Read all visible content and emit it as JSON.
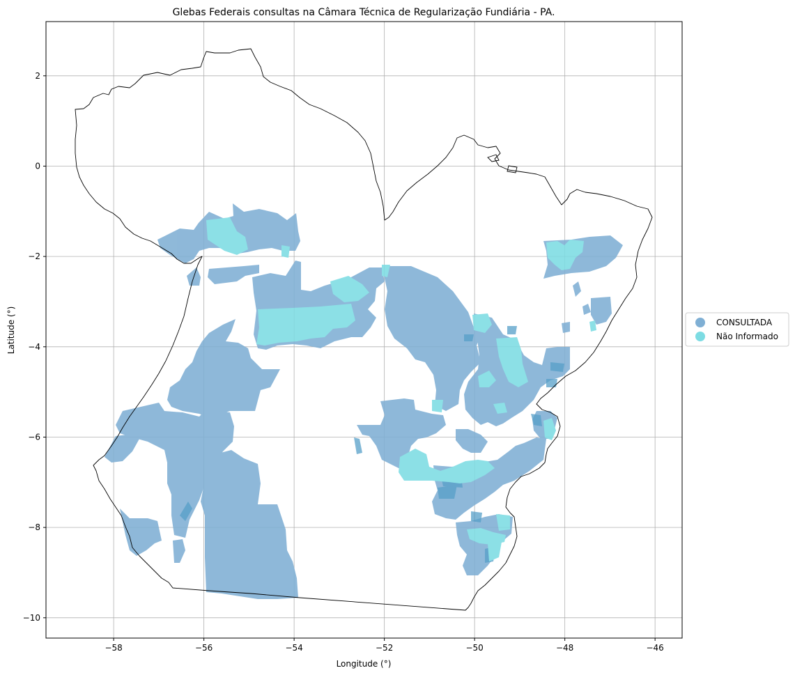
{
  "chart_data": {
    "type": "map",
    "title": "Glebas Federais consultas na Câmara Técnica de Regularização Fundiária - PA.",
    "xlabel": "Longitude (°)",
    "ylabel": "Latitude (°)",
    "xlim": [
      -59.5,
      -45.4
    ],
    "ylim": [
      -10.45,
      3.2
    ],
    "xticks": [
      -58,
      -56,
      -54,
      -52,
      -50,
      -48,
      -46
    ],
    "yticks": [
      2,
      0,
      -2,
      -4,
      -6,
      -8,
      -10
    ],
    "xtick_labels": [
      "−58",
      "−56",
      "−54",
      "−52",
      "−50",
      "−48",
      "−46"
    ],
    "ytick_labels": [
      "2",
      "0",
      "−2",
      "−4",
      "−6",
      "−8",
      "−10"
    ],
    "grid": true,
    "legend_position": "right",
    "legend": [
      {
        "label": "CONSULTADA",
        "color": "#7fafd4"
      },
      {
        "label": "Não Informado",
        "color": "#7ddce3"
      }
    ],
    "colors": {
      "consultada": "#7fafd4",
      "consultada_dark": "#3f92c0",
      "nao_informado": "#7ddce3",
      "boundary": "#000000",
      "grid": "#b0b0b0"
    }
  }
}
